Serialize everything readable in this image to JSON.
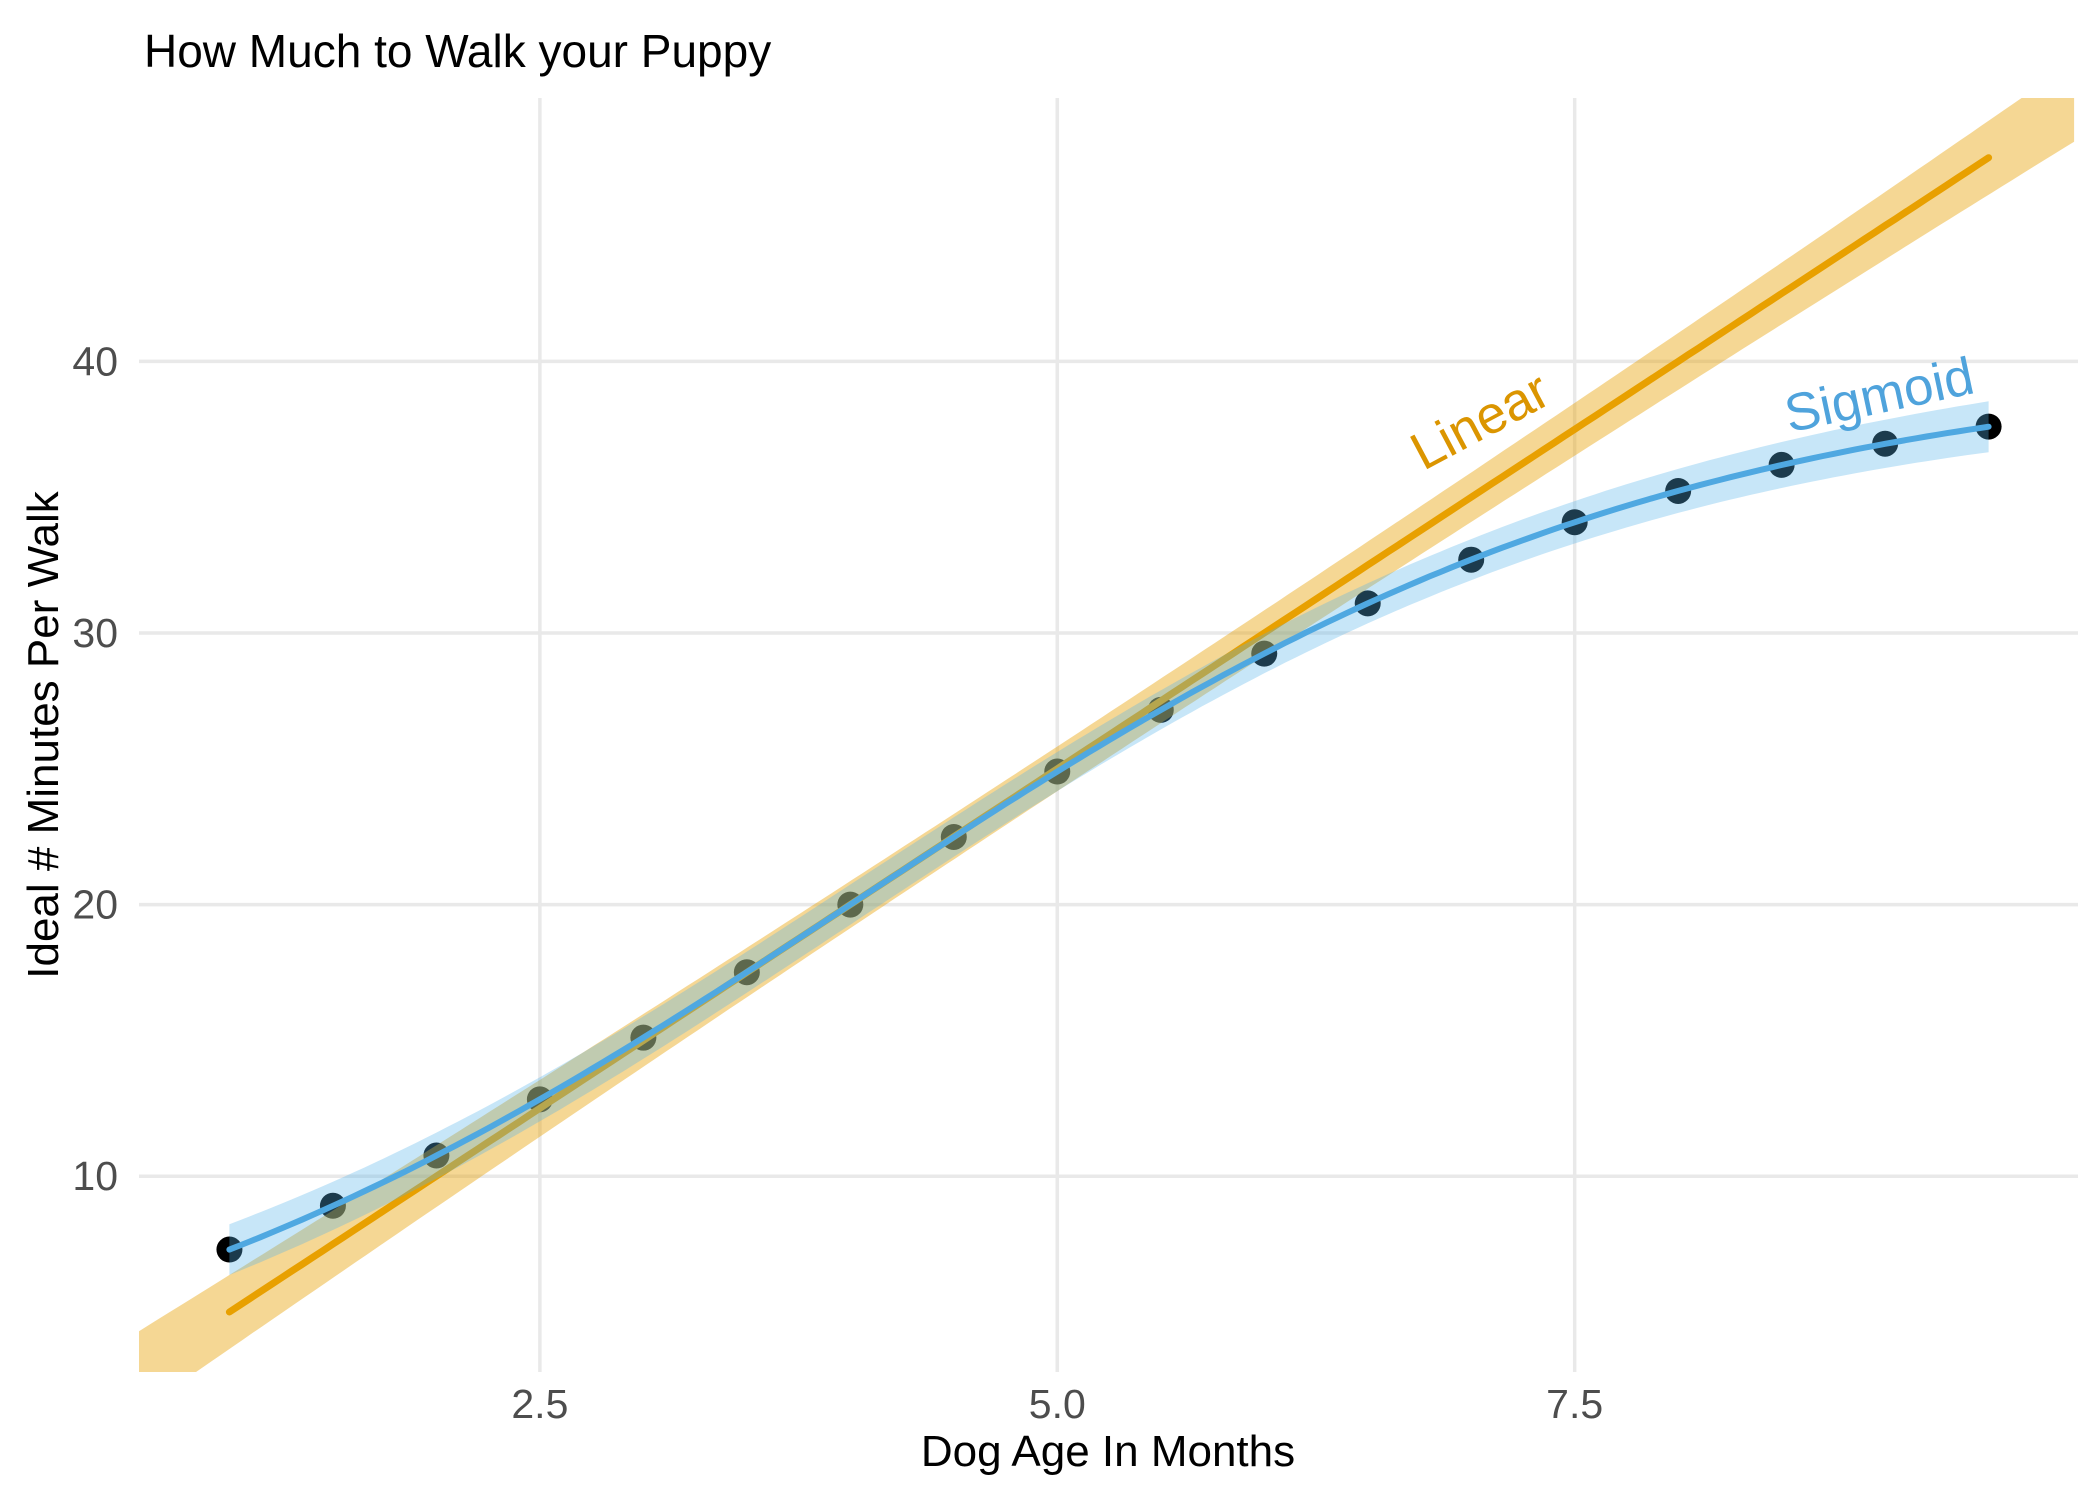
{
  "chart_data": {
    "type": "scatter",
    "title": "How Much to Walk your Puppy",
    "xlabel": "Dog Age In Months",
    "ylabel": "Ideal # Minutes Per Walk",
    "x_ticks": [
      2.5,
      5.0,
      7.5
    ],
    "x_tick_labels": [
      "2.5",
      "5.0",
      "7.5"
    ],
    "y_ticks": [
      10,
      20,
      30,
      40
    ],
    "y_tick_labels": [
      "10",
      "20",
      "30",
      "40"
    ],
    "x_range": [
      0.563,
      9.932
    ],
    "y_range": [
      2.79,
      49.7
    ],
    "grid": "major-only, light gray, no axis lines (minimal theme)",
    "legend": "none (inline rotated curve labels)",
    "point_color": "#000000",
    "point_radius_px": 13,
    "points": {
      "x": [
        1.0,
        1.5,
        2.0,
        2.5,
        3.0,
        3.5,
        4.0,
        4.5,
        5.0,
        5.5,
        6.0,
        6.5,
        7.0,
        7.5,
        8.0,
        8.5,
        9.0,
        9.5
      ],
      "y": [
        7.3,
        8.91,
        10.76,
        12.83,
        15.1,
        17.51,
        20.0,
        22.49,
        24.9,
        27.17,
        29.24,
        31.09,
        32.7,
        34.08,
        35.23,
        36.19,
        36.97,
        37.6
      ]
    },
    "series": [
      {
        "name": "Linear",
        "model": "linear",
        "slope": 5,
        "intercept": 0,
        "x_start": 1.0,
        "x_end": 9.5,
        "band_full_range": true,
        "line_color": "#E8A000",
        "band_color": "#E69F00",
        "band_opacity": 0.42,
        "label": {
          "text": "Linear",
          "x": 7.04,
          "y": 37.85,
          "angle": -28,
          "color": "#DB9500"
        }
      },
      {
        "name": "Sigmoid",
        "model": "logistic",
        "L": 40,
        "k": 0.5,
        "x0": 4,
        "x_start": 1.0,
        "x_end": 9.5,
        "band_full_range": false,
        "line_color": "#4FA8E1",
        "band_color": "#56B4E9",
        "band_opacity": 0.33,
        "label": {
          "text": "Sigmoid",
          "x": 8.97,
          "y": 38.8,
          "angle": -12,
          "color": "#4FA3DC"
        }
      }
    ],
    "colors": {
      "background": "#FFFFFF",
      "grid": "#E9E9E9",
      "tick_text": "#4D4D4D",
      "title_text": "#000000"
    }
  }
}
